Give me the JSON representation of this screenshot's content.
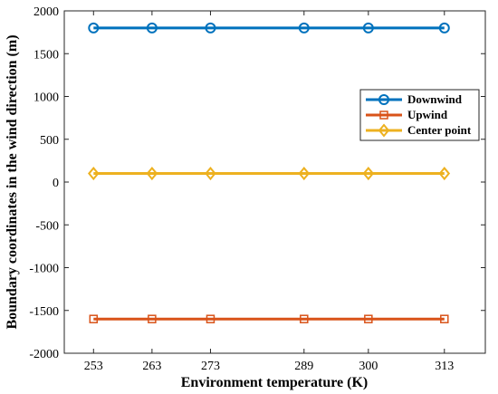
{
  "chart_data": {
    "type": "line",
    "title": "",
    "xlabel": "Environment temperature (K)",
    "ylabel": "Boundary coordinates in the wind direction (m)",
    "x": [
      253,
      263,
      273,
      289,
      300,
      313
    ],
    "xticks": [
      "253",
      "263",
      "273",
      "289",
      "300",
      "313"
    ],
    "xlim": [
      248,
      320
    ],
    "ylim": [
      -2000,
      2000
    ],
    "yticks": [
      "-2000",
      "-1500",
      "-1000",
      "-500",
      "0",
      "500",
      "1000",
      "1500",
      "2000"
    ],
    "grid": false,
    "legend_position": "right",
    "series": [
      {
        "name": "Downwind",
        "values": [
          1800,
          1800,
          1800,
          1800,
          1800,
          1800
        ],
        "color": "#0072BD",
        "marker": "circle"
      },
      {
        "name": "Upwind",
        "values": [
          -1600,
          -1600,
          -1600,
          -1600,
          -1600,
          -1600
        ],
        "color": "#D95319",
        "marker": "square"
      },
      {
        "name": "Center point",
        "values": [
          100,
          100,
          100,
          100,
          100,
          100
        ],
        "color": "#EDB120",
        "marker": "diamond"
      }
    ]
  }
}
